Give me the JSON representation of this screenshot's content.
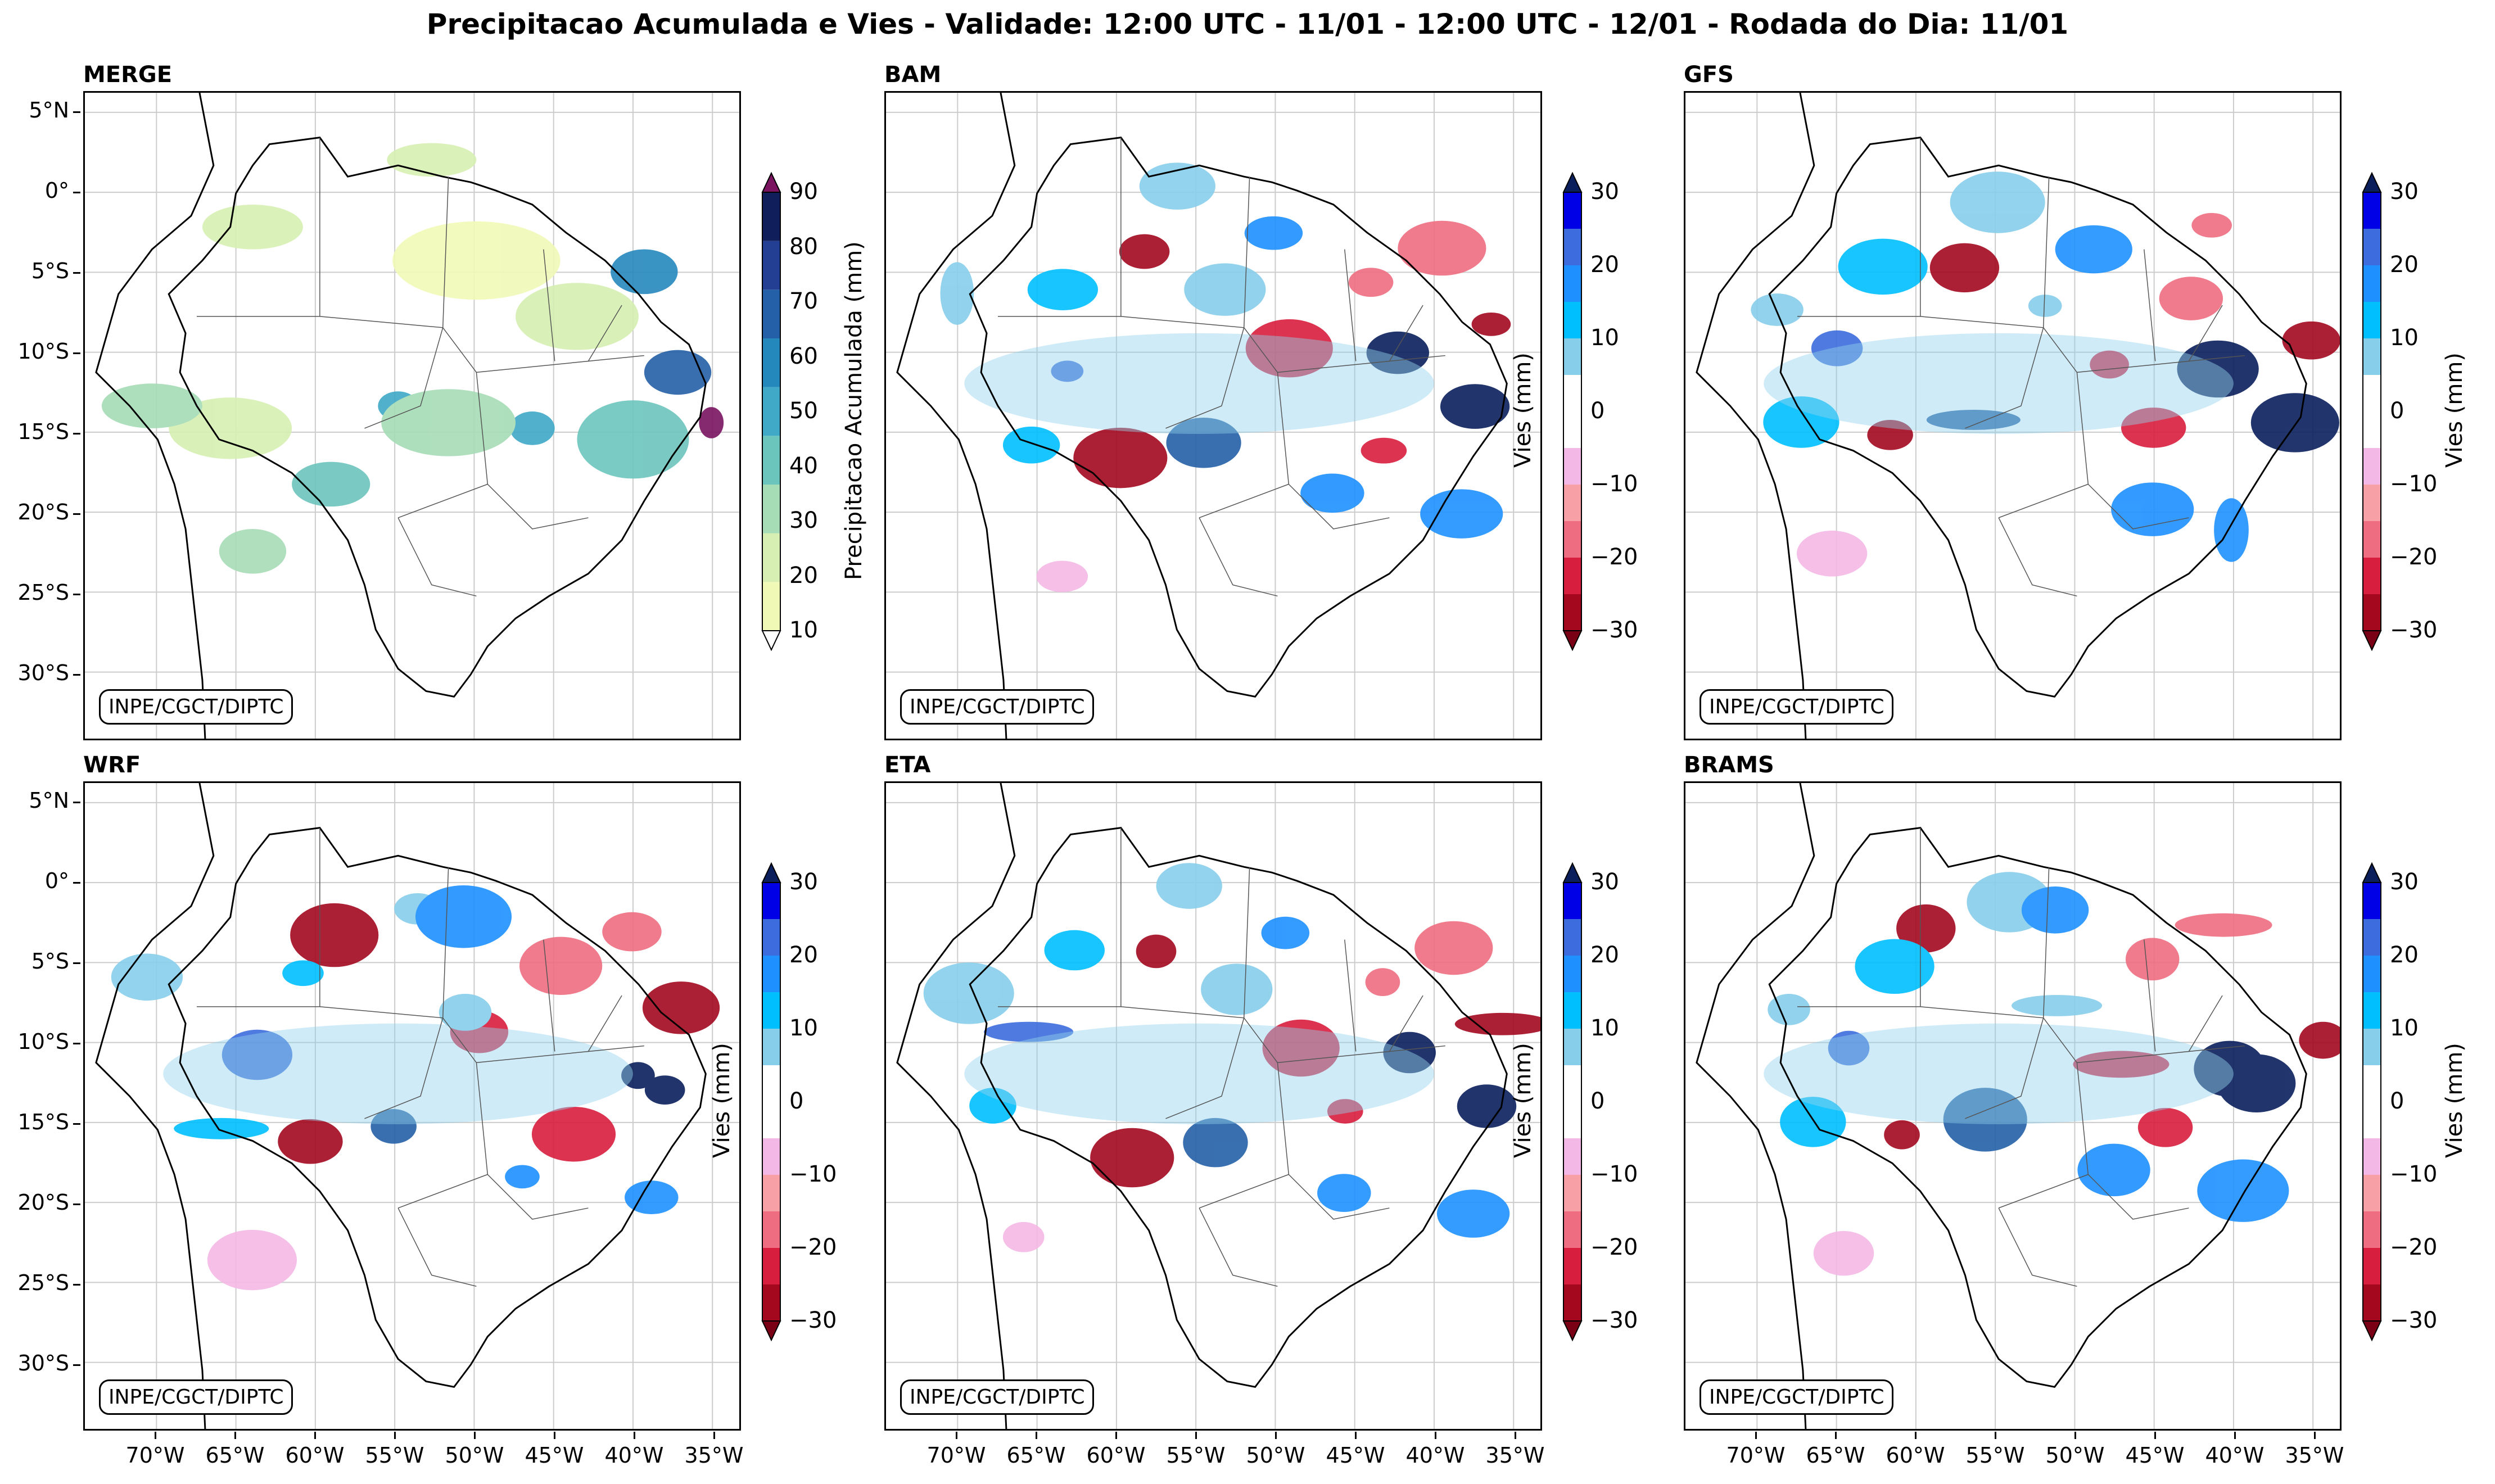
{
  "figure_title": "Precipitacao Acumulada e Vies - Validade: 12:00 UTC - 11/01 - 12:00 UTC - 12/01 - Rodada do Dia: 11/01",
  "credit": "INPE/CGCT/DIPTC",
  "lat_ticks": [
    "5°N",
    "0°",
    "5°S",
    "10°S",
    "15°S",
    "20°S",
    "25°S",
    "30°S"
  ],
  "lon_ticks": [
    "70°W",
    "65°W",
    "60°W",
    "55°W",
    "50°W",
    "45°W",
    "40°W",
    "35°W"
  ],
  "panels": [
    {
      "id": "merge",
      "title": "MERGE",
      "colorbar": "precip"
    },
    {
      "id": "bam",
      "title": "BAM",
      "colorbar": "bias"
    },
    {
      "id": "gfs",
      "title": "GFS",
      "colorbar": "bias"
    },
    {
      "id": "wrf",
      "title": "WRF",
      "colorbar": "bias"
    },
    {
      "id": "eta",
      "title": "ETA",
      "colorbar": "bias"
    },
    {
      "id": "brams",
      "title": "BRAMS",
      "colorbar": "bias"
    }
  ],
  "colorbars": {
    "precip": {
      "label": "Precipitacao Acumulada (mm)",
      "ticks": [
        "10",
        "20",
        "30",
        "40",
        "50",
        "60",
        "70",
        "80",
        "90"
      ],
      "colors": [
        "#f1f9b7",
        "#d7efb2",
        "#a6dcb6",
        "#6cc5bd",
        "#3fa9c7",
        "#2588bd",
        "#2460a7",
        "#233f93",
        "#101e5c"
      ],
      "over_color": "#7a1460",
      "under_color": "#ffffff"
    },
    "bias": {
      "label": "Vies (mm)",
      "ticks": [
        "30",
        "20",
        "10",
        "0",
        "−10",
        "−20",
        "−30"
      ],
      "colors": [
        "#0000e6",
        "#3c6cdd",
        "#1e90ff",
        "#00bfff",
        "#87ceeb",
        "#ffffff",
        "#ffffff",
        "#f4b8e6",
        "#f7a1a6",
        "#ee6d80",
        "#d81e3e",
        "#a3081f"
      ],
      "over_color": "#0a1f5c",
      "under_color": "#7a0015"
    }
  }
}
